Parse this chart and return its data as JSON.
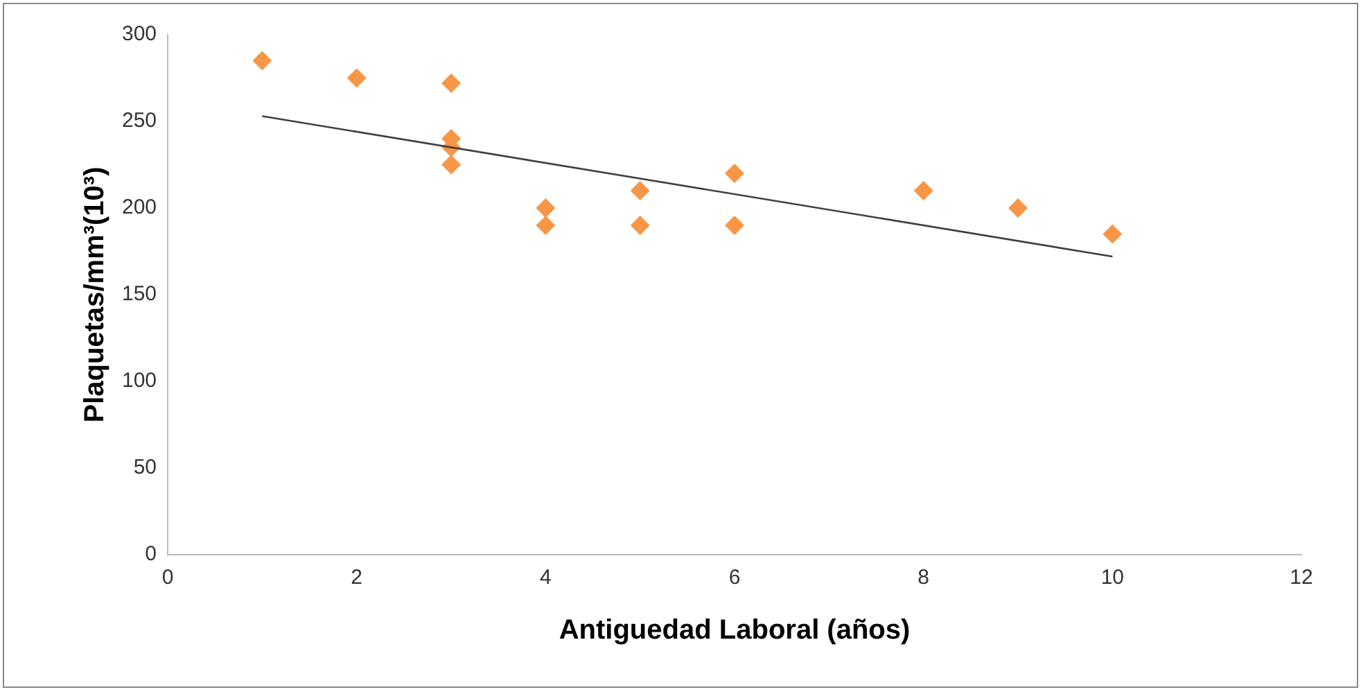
{
  "chart_data": {
    "type": "scatter",
    "xlabel": "Antiguedad Laboral (años)",
    "ylabel": "Plaquetas/mm³(10³)",
    "series": [
      {
        "color": "#f79646",
        "marker": "diamond",
        "x": [
          1,
          2,
          3,
          3,
          3,
          3,
          4,
          4,
          5,
          5,
          6,
          6,
          8,
          9,
          10
        ],
        "values": [
          285,
          275,
          272,
          240,
          235,
          225,
          200,
          190,
          210,
          190,
          220,
          190,
          210,
          200,
          185
        ]
      },
      {
        "type": "line",
        "color": "#404040",
        "marker": "none",
        "x": [
          1,
          10
        ],
        "values": [
          253,
          172
        ]
      }
    ],
    "xlim": [
      0,
      12
    ],
    "xticks": [
      0,
      2,
      4,
      6,
      8,
      10,
      12
    ],
    "ylim": [
      0,
      300
    ],
    "yticks": [
      0,
      50,
      100,
      150,
      200,
      250,
      300
    ],
    "grid": false,
    "legend": false
  }
}
